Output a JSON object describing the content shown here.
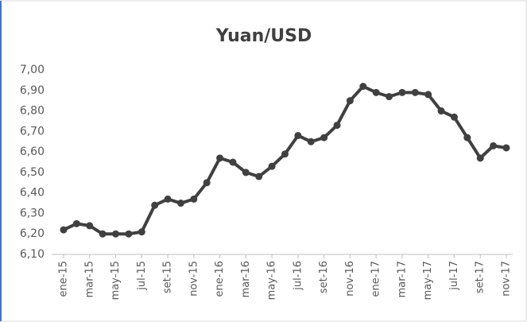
{
  "chart_data": {
    "type": "line",
    "title": "Yuan/USD",
    "categories": [
      "ene-15",
      null,
      "mar-15",
      null,
      "may-15",
      null,
      "jul-15",
      null,
      "set-15",
      null,
      "nov-15",
      null,
      "ene-16",
      null,
      "mar-16",
      null,
      "may-16",
      null,
      "jul-16",
      null,
      "set-16",
      null,
      "nov-16",
      null,
      "ene-17",
      null,
      "mar-17",
      null,
      "may-17",
      null,
      "jul-17",
      null,
      "set-17",
      null,
      "nov-17"
    ],
    "series": [
      {
        "name": "Yuan/USD",
        "color": "#404040",
        "values": [
          6.22,
          6.25,
          6.24,
          6.2,
          6.2,
          6.2,
          6.21,
          6.34,
          6.37,
          6.35,
          6.37,
          6.45,
          6.57,
          6.55,
          6.5,
          6.48,
          6.53,
          6.59,
          6.68,
          6.65,
          6.67,
          6.73,
          6.85,
          6.92,
          6.89,
          6.87,
          6.89,
          6.89,
          6.88,
          6.8,
          6.77,
          6.67,
          6.57,
          6.63,
          6.62
        ]
      }
    ],
    "ylim": [
      6.1,
      7.0
    ],
    "yticks": [
      {
        "value": 6.1,
        "label": "6,10"
      },
      {
        "value": 6.2,
        "label": "6,20"
      },
      {
        "value": 6.3,
        "label": "6,30"
      },
      {
        "value": 6.4,
        "label": "6,40"
      },
      {
        "value": 6.5,
        "label": "6,50"
      },
      {
        "value": 6.6,
        "label": "6,60"
      },
      {
        "value": 6.7,
        "label": "6,70"
      },
      {
        "value": 6.8,
        "label": "6,80"
      },
      {
        "value": 6.9,
        "label": "6,90"
      },
      {
        "value": 7.0,
        "label": "7,00"
      }
    ],
    "grid": false
  }
}
